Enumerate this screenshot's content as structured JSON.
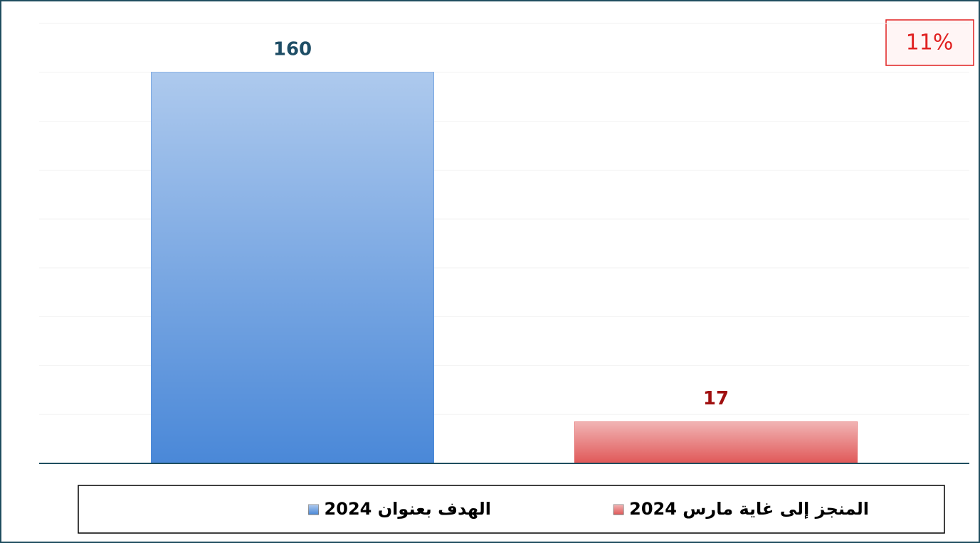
{
  "chart_data": {
    "type": "bar",
    "annotation": "11%",
    "categories": [
      null
    ],
    "series": [
      {
        "name": "الهدف بعنوان 2024",
        "color": "#4a88d8",
        "label_color": "#1f4e66",
        "values": [
          160
        ]
      },
      {
        "name": "المنجز إلى غاية مارس 2024",
        "color": "#e05858",
        "label_color": "#a01010",
        "values": [
          17
        ]
      }
    ],
    "ylim": [
      0,
      180
    ],
    "yticks": [
      0,
      20,
      40,
      60,
      80,
      100,
      120,
      140,
      160,
      180
    ],
    "grid": true
  }
}
